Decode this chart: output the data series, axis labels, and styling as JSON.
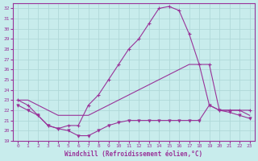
{
  "xlabel": "Windchill (Refroidissement éolien,°C)",
  "background_color": "#c8ecec",
  "grid_color": "#b0d8d8",
  "line_color": "#993399",
  "xlim": [
    -0.5,
    23.5
  ],
  "ylim": [
    19,
    32.5
  ],
  "yticks": [
    19,
    20,
    21,
    22,
    23,
    24,
    25,
    26,
    27,
    28,
    29,
    30,
    31,
    32
  ],
  "xticks": [
    0,
    1,
    2,
    3,
    4,
    5,
    6,
    7,
    8,
    9,
    10,
    11,
    12,
    13,
    14,
    15,
    16,
    17,
    18,
    19,
    20,
    21,
    22,
    23
  ],
  "series_top_x": [
    0,
    1,
    2,
    3,
    4,
    5,
    6,
    7,
    8,
    9,
    10,
    11,
    12,
    13,
    14,
    15,
    16,
    17,
    18,
    19,
    20,
    21,
    22,
    23
  ],
  "series_top_y": [
    23.0,
    22.5,
    21.5,
    20.5,
    20.2,
    20.5,
    20.5,
    22.5,
    23.5,
    25.0,
    26.5,
    28.0,
    29.0,
    30.5,
    32.0,
    32.2,
    31.8,
    29.5,
    26.5,
    26.5,
    22.0,
    22.0,
    22.0,
    22.0
  ],
  "series_mid_x": [
    0,
    1,
    2,
    3,
    4,
    5,
    6,
    7,
    8,
    9,
    10,
    11,
    12,
    13,
    14,
    15,
    16,
    17,
    18,
    19,
    20,
    21,
    22,
    23
  ],
  "series_mid_y": [
    23.0,
    23.0,
    22.5,
    22.0,
    21.5,
    21.5,
    21.5,
    21.5,
    22.0,
    22.5,
    23.0,
    23.5,
    24.0,
    24.5,
    25.0,
    25.5,
    26.0,
    26.5,
    26.5,
    22.5,
    22.0,
    22.0,
    22.0,
    21.5
  ],
  "series_bot_x": [
    0,
    1,
    2,
    3,
    4,
    5,
    6,
    7,
    8,
    9,
    10,
    11,
    12,
    13,
    14,
    15,
    16,
    17,
    18,
    19,
    20,
    21,
    22,
    23
  ],
  "series_bot_y": [
    22.5,
    22.0,
    21.5,
    20.5,
    20.2,
    20.0,
    19.5,
    19.5,
    20.0,
    20.5,
    20.8,
    21.0,
    21.0,
    21.0,
    21.0,
    21.0,
    21.0,
    21.0,
    21.0,
    22.5,
    22.0,
    21.8,
    21.5,
    21.2
  ]
}
